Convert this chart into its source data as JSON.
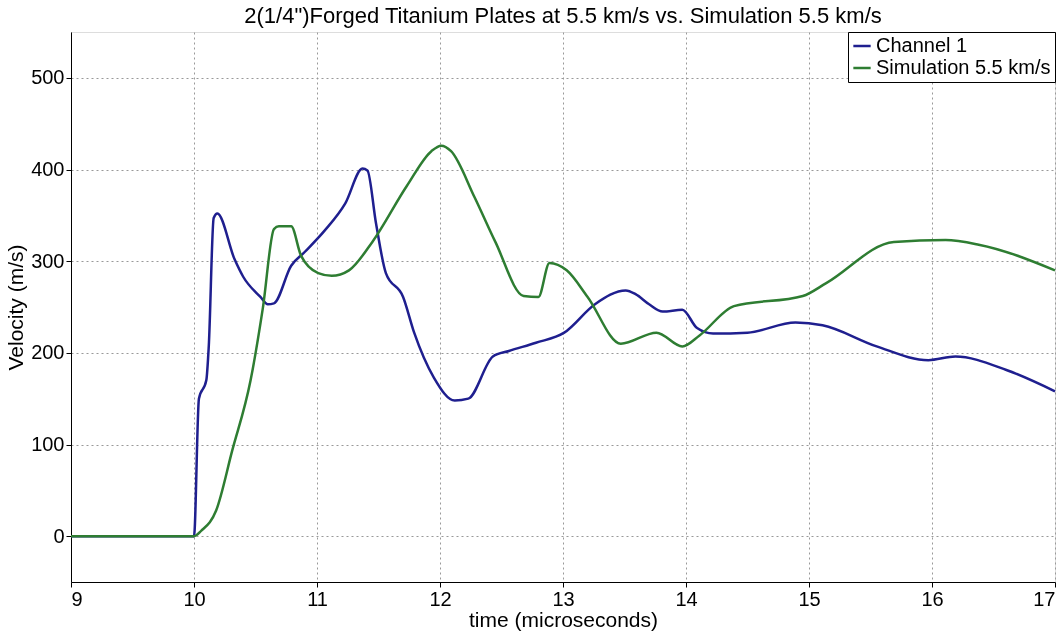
{
  "chart_data": {
    "type": "line",
    "title": "2(1/4\")Forged Titanium Plates at 5.5 km/s vs. Simulation 5.5 km/s",
    "xlabel": "time (microseconds)",
    "ylabel": "Velocity (m/s)",
    "xlim": [
      9,
      17
    ],
    "xticks": [
      9,
      10,
      11,
      12,
      13,
      14,
      15,
      16,
      17
    ],
    "ylim": [
      -50,
      550
    ],
    "yticks": [
      0,
      100,
      200,
      300,
      400,
      500
    ],
    "grid": true,
    "legend": "top right",
    "line_style": "solid",
    "marker": "none",
    "series": [
      {
        "name": "Channel 1",
        "color": "#1f1f8f",
        "x": [
          9,
          10,
          10.04,
          10.1,
          10.12,
          10.16,
          10.19,
          10.33,
          10.4,
          10.54,
          10.6,
          10.65,
          10.79,
          10.9,
          11.06,
          11.23,
          11.37,
          11.41,
          11.48,
          11.56,
          11.7,
          11.79,
          11.95,
          12.12,
          12.23,
          12.43,
          12.56,
          12.78,
          13.01,
          13.26,
          13.51,
          13.59,
          13.7,
          13.81,
          13.97,
          14.09,
          14.22,
          14.5,
          14.89,
          15.11,
          15.55,
          15.97,
          16.19,
          16.61,
          17
        ],
        "values": [
          0,
          0,
          150,
          170,
          207,
          347,
          352,
          302,
          283,
          261,
          253,
          254,
          295,
          310,
          333,
          363,
          401,
          399,
          341,
          287,
          261,
          222,
          173,
          148,
          150,
          196,
          202,
          211,
          222,
          253,
          268,
          264,
          253,
          245,
          247,
          227,
          221,
          222,
          233,
          230,
          207,
          192,
          196,
          181,
          158
        ]
      },
      {
        "name": "Simulation 5.5 km/s",
        "color": "#2e7d32",
        "x": [
          9,
          10,
          10.06,
          10.18,
          10.31,
          10.46,
          10.56,
          10.65,
          10.69,
          10.79,
          10.87,
          11.01,
          11.12,
          11.26,
          11.45,
          11.73,
          11.93,
          12.01,
          12.09,
          12.28,
          12.45,
          12.68,
          12.8,
          12.89,
          13.03,
          13.2,
          13.47,
          13.76,
          13.97,
          14.11,
          14.39,
          14.95,
          15.14,
          15.69,
          16.11,
          16.38,
          17
        ],
        "values": [
          0,
          0,
          6,
          28,
          93,
          170,
          249,
          335,
          338,
          338,
          306,
          287,
          284,
          290,
          321,
          382,
          420,
          426,
          420,
          370,
          321,
          262,
          261,
          298,
          290,
          261,
          210,
          222,
          207,
          219,
          251,
          262,
          276,
          321,
          323,
          318,
          290
        ]
      }
    ]
  }
}
